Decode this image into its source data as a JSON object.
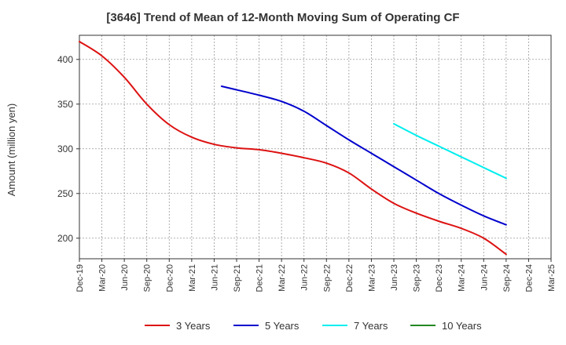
{
  "chart_data": {
    "type": "line",
    "title": "[3646]  Trend of Mean of 12-Month Moving Sum of Operating CF",
    "xlabel": "",
    "ylabel": "Amount (million yen)",
    "ylim": [
      177,
      427
    ],
    "yticks": [
      200,
      250,
      300,
      350,
      400
    ],
    "x_tick_labels": [
      "Dec-19",
      "Mar-20",
      "Jun-20",
      "Sep-20",
      "Dec-20",
      "Mar-21",
      "Jun-21",
      "Sep-21",
      "Dec-21",
      "Mar-22",
      "Jun-22",
      "Sep-22",
      "Dec-22",
      "Mar-23",
      "Jun-23",
      "Sep-23",
      "Dec-23",
      "Mar-24",
      "Jun-24",
      "Sep-24",
      "Dec-24",
      "Mar-25"
    ],
    "grid": true,
    "legend_position": "bottom",
    "series": [
      {
        "name": "3 Years",
        "color": "#dd1111",
        "points": [
          [
            0,
            420
          ],
          [
            1,
            404
          ],
          [
            2,
            380
          ],
          [
            3,
            350
          ],
          [
            4,
            327
          ],
          [
            5,
            313
          ],
          [
            6,
            305
          ],
          [
            7,
            301
          ],
          [
            8,
            299
          ],
          [
            9,
            295
          ],
          [
            10,
            290
          ],
          [
            11,
            284
          ],
          [
            12,
            273
          ],
          [
            13,
            255
          ],
          [
            14,
            239
          ],
          [
            15,
            228
          ],
          [
            16,
            219
          ],
          [
            17,
            211
          ],
          [
            18,
            200
          ],
          [
            19,
            182
          ]
        ]
      },
      {
        "name": "5 Years",
        "color": "#0000cc",
        "points": [
          [
            6.33,
            370
          ],
          [
            7,
            366
          ],
          [
            8,
            360
          ],
          [
            9,
            353
          ],
          [
            10,
            342
          ],
          [
            11,
            326
          ],
          [
            12,
            310
          ],
          [
            13,
            295
          ],
          [
            14,
            280
          ],
          [
            15,
            265
          ],
          [
            16,
            250
          ],
          [
            17,
            237
          ],
          [
            18,
            225
          ],
          [
            19,
            215
          ]
        ]
      },
      {
        "name": "7 Years",
        "color": "#00eeee",
        "points": [
          [
            14,
            328
          ],
          [
            15,
            315
          ],
          [
            16,
            303
          ],
          [
            17,
            291
          ],
          [
            18,
            279
          ],
          [
            19,
            267
          ]
        ]
      },
      {
        "name": "10 Years",
        "color": "#228822",
        "points": []
      }
    ]
  }
}
